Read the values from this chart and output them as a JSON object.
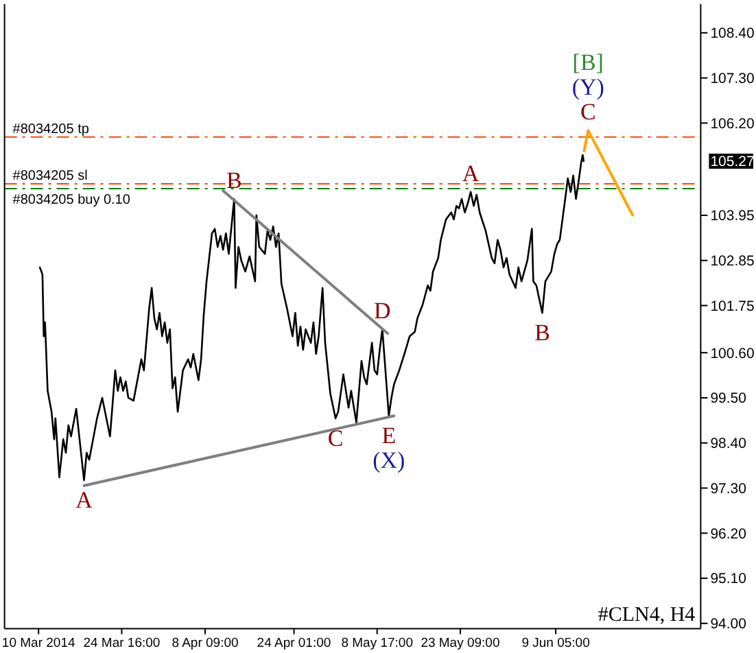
{
  "chart_data": {
    "type": "line",
    "xlim": [
      "2014-03-04T00:00",
      "2014-07-04T18:30"
    ],
    "ylim": [
      93.87,
      109.1
    ],
    "xticks": [
      {
        "value": "2014-03-10T00:00",
        "label": "10 Mar 2014"
      },
      {
        "value": "2014-03-24T16:00",
        "label": "24 Mar 16:00"
      },
      {
        "value": "2014-04-08T09:00",
        "label": "8 Apr 09:00"
      },
      {
        "value": "2014-04-24T01:00",
        "label": "24 Apr 01:00"
      },
      {
        "value": "2014-05-08T17:00",
        "label": "8 May 17:00"
      },
      {
        "value": "2014-05-23T09:00",
        "label": "23 May 09:00"
      },
      {
        "value": "2014-06-09T05:00",
        "label": "9 Jun 05:00"
      }
    ],
    "yticks": [
      {
        "value": 94,
        "label": "94.00"
      },
      {
        "value": 95.1,
        "label": "95.10"
      },
      {
        "value": 96.2,
        "label": "96.20"
      },
      {
        "value": 97.3,
        "label": "97.30"
      },
      {
        "value": 98.4,
        "label": "98.40"
      },
      {
        "value": 99.5,
        "label": "99.50"
      },
      {
        "value": 100.6,
        "label": "100.60"
      },
      101.75,
      102.85,
      103.95,
      {
        "value": 106.2,
        "label": "106.20"
      },
      {
        "value": 107.3,
        "label": "107.30"
      },
      {
        "value": 108.4,
        "label": "108.40"
      }
    ],
    "series": [
      {
        "color": "#000000",
        "x": [
          "2014-03-10T05:30",
          "2014-03-10T16:30",
          "2014-03-10T22:00",
          "2014-03-11T03:30",
          "2014-03-11T14:30",
          "2014-03-12T07:00",
          "2014-03-12T18:00",
          "2014-03-12T23:30",
          "2014-03-13T16:00",
          "2014-03-14T08:30",
          "2014-03-14T19:30",
          "2014-03-15T06:30",
          "2014-03-15T17:30",
          "2014-03-16T15:30",
          "2014-03-18T00:30",
          "2014-03-18T11:30",
          "2014-03-18T22:30",
          "2014-03-20T07:30",
          "2014-03-21T05:30",
          "2014-03-22T14:30",
          "2014-03-23T12:30",
          "2014-03-23T23:30",
          "2014-03-24T10:30",
          "2014-03-24T22:00",
          "2014-03-25T09:00",
          "2014-03-25T20:00",
          "2014-03-26T18:00",
          "2014-03-28T03:00",
          "2014-03-28T14:00",
          "2014-03-29T12:00",
          "2014-03-29T23:00",
          "2014-03-30T10:00",
          "2014-03-30T21:00",
          "2014-03-31T08:00",
          "2014-03-31T19:00",
          "2014-04-01T06:00",
          "2014-04-01T17:00",
          "2014-04-02T04:00",
          "2014-04-02T15:00",
          "2014-04-03T02:00",
          "2014-04-03T13:00",
          "2014-04-04T11:00",
          "2014-04-05T09:00",
          "2014-04-05T20:00",
          "2014-04-06T07:00",
          "2014-04-07T05:00",
          "2014-04-07T16:00",
          "2014-04-08T03:00",
          "2014-04-08T15:00",
          "2014-04-09T14:00",
          "2014-04-10T02:00",
          "2014-04-10T14:00",
          "2014-04-11T02:00",
          "2014-04-11T13:00",
          "2014-04-12T01:00",
          "2014-04-12T13:00",
          "2014-04-13T12:00",
          "2014-04-13T18:00",
          "2014-04-14T06:00",
          "2014-04-14T18:00",
          "2014-04-15T11:00",
          "2014-04-16T05:00",
          "2014-04-17T04:30",
          "2014-04-17T10:00",
          "2014-04-17T22:00",
          "2014-04-18T22:00",
          "2014-04-19T09:00",
          "2014-04-19T21:00",
          "2014-04-20T09:00",
          "2014-04-20T21:00",
          "2014-04-21T08:00",
          "2014-04-21T20:00",
          "2014-04-22T20:00",
          "2014-04-23T19:00",
          "2014-04-24T06:30",
          "2014-04-24T17:30",
          "2014-04-25T04:30",
          "2014-04-25T15:30",
          "2014-04-26T02:30",
          "2014-04-27T00:30",
          "2014-04-27T11:30",
          "2014-04-27T22:30",
          "2014-04-28T09:30",
          "2014-04-29T02:00",
          "2014-04-29T13:00",
          "2014-04-30T11:00",
          "2014-05-01T09:00",
          "2014-05-01T20:00",
          "2014-05-02T18:00",
          "2014-05-03T16:00",
          "2014-05-04T03:00",
          "2014-05-05T01:00",
          "2014-05-05T23:00",
          "2014-05-06T10:00",
          "2014-05-06T21:00",
          "2014-05-07T19:00",
          "2014-05-08T06:00",
          "2014-05-08T17:00",
          "2014-05-09T04:00",
          "2014-05-09T15:00",
          "2014-05-10T02:00",
          "2014-05-10T18:30",
          "2014-05-11T05:30",
          "2014-05-11T16:30",
          "2014-05-12T14:30",
          "2014-05-13T12:30",
          "2014-05-14T10:30",
          "2014-05-15T08:30",
          "2014-05-15T19:30",
          "2014-05-16T17:30",
          "2014-05-17T15:30",
          "2014-05-18T02:30",
          "2014-05-18T13:30",
          "2014-05-19T11:30",
          "2014-05-19T22:30",
          "2014-05-20T20:30",
          "2014-05-21T18:30",
          "2014-05-22T05:30",
          "2014-05-22T16:30",
          "2014-05-23T03:30",
          "2014-05-23T15:00",
          "2014-05-24T04:00",
          "2014-05-24T17:00",
          "2014-05-25T05:00",
          "2014-05-25T18:00",
          "2014-05-26T06:00",
          "2014-05-26T19:00",
          "2014-05-27T20:00",
          "2014-05-28T22:00",
          "2014-05-29T10:00",
          "2014-05-29T23:00",
          "2014-05-30T11:00",
          "2014-05-31T00:00",
          "2014-05-31T13:00",
          "2014-06-01T01:00",
          "2014-06-02T03:00",
          "2014-06-02T15:00",
          "2014-06-03T04:00",
          "2014-06-04T05:00",
          "2014-06-05T00:00",
          "2014-06-05T06:00",
          "2014-06-05T19:00",
          "2014-06-06T20:00",
          "2014-06-07T09:00",
          "2014-06-08T10:00",
          "2014-06-08T23:00",
          "2014-06-09T11:00",
          "2014-06-09T22:00",
          "2014-06-10T09:30",
          "2014-06-10T21:00",
          "2014-06-11T08:00",
          "2014-06-11T20:00",
          "2014-06-12T07:00",
          "2014-06-12T18:30",
          "2014-06-13T06:00",
          "2014-06-13T17:00",
          "2014-06-13T23:00",
          "2014-06-14T03:00"
        ],
        "values": [
          102.68,
          102.51,
          101.0,
          101.34,
          99.67,
          99.16,
          98.49,
          99.0,
          97.56,
          98.49,
          98.16,
          98.83,
          98.56,
          99.23,
          97.49,
          98.16,
          97.99,
          99.0,
          99.5,
          98.56,
          100.17,
          99.67,
          100.0,
          99.67,
          99.9,
          99.5,
          99.43,
          100.44,
          100.17,
          101.67,
          102.18,
          101.44,
          101.17,
          101.57,
          101.0,
          101.34,
          100.84,
          101.17,
          99.73,
          100.0,
          99.16,
          100.17,
          100.44,
          100.24,
          100.57,
          99.93,
          100.44,
          101.51,
          102.34,
          103.51,
          103.62,
          103.18,
          103.45,
          103.11,
          103.51,
          103.01,
          104.35,
          102.18,
          103.18,
          102.85,
          102.58,
          102.95,
          102.34,
          103.95,
          103.18,
          103.01,
          103.58,
          103.35,
          103.68,
          103.18,
          103.51,
          102.28,
          101.67,
          101.0,
          101.57,
          100.77,
          101.24,
          100.67,
          101.17,
          100.84,
          101.34,
          100.57,
          101.0,
          102.18,
          100.84,
          99.6,
          99.0,
          99.16,
          100.07,
          99.26,
          99.67,
          98.9,
          100.4,
          100.0,
          99.83,
          100.84,
          100.17,
          100.07,
          100.67,
          101.17,
          100.34,
          99.06,
          99.5,
          99.83,
          100.17,
          100.57,
          101.0,
          101.11,
          101.44,
          101.77,
          102.24,
          102.11,
          102.58,
          102.91,
          103.35,
          103.85,
          104.02,
          103.85,
          104.18,
          104.12,
          104.35,
          104.02,
          104.25,
          104.52,
          104.18,
          104.45,
          104.02,
          103.58,
          102.91,
          102.78,
          103.35,
          103.11,
          102.68,
          102.91,
          102.51,
          102.18,
          102.68,
          102.34,
          102.85,
          103.62,
          102.34,
          102.24,
          101.57,
          102.34,
          102.58,
          103.01,
          103.25,
          103.35,
          103.85,
          104.35,
          104.85,
          104.52,
          104.92,
          104.35,
          104.79,
          105.25,
          105.42,
          105.27
        ]
      },
      {
        "type": "line",
        "color": "#7f7f7f",
        "x": [
          "2014-04-11T13:00",
          "2014-05-10T13:00"
        ],
        "values": [
          104.55,
          101.07
        ]
      },
      {
        "type": "line",
        "color": "#7f7f7f",
        "x": [
          "2014-03-18T00:30",
          "2014-05-11T16:30"
        ],
        "values": [
          97.36,
          99.06
        ]
      },
      {
        "type": "line",
        "color": "#ffa500",
        "x": [
          "2014-06-14T05:00",
          "2014-06-14T22:00",
          "2014-06-22T18:00"
        ],
        "values": [
          105.52,
          106.02,
          103.96
        ]
      }
    ],
    "ref_lines": [
      {
        "axis": "y",
        "value": 105.86,
        "label": "#8034205 tp",
        "color": "#ff4500",
        "line_style": "dashed"
      },
      {
        "axis": "y",
        "value": 104.72,
        "label": "#8034205 sl",
        "color": "#ff4500",
        "line_style": "dashed"
      },
      {
        "axis": "y",
        "value": 104.6,
        "label": "#8034205 buy 0.10",
        "color": "#008000",
        "line_style": "dashed"
      }
    ],
    "annotations": [
      {
        "text": "A",
        "x": "2014-03-18T00:30",
        "y": 97.49
      },
      {
        "text": "B",
        "x": "2014-04-13T12:00",
        "y": 104.35
      },
      {
        "text": "C",
        "x": "2014-05-01T09:00",
        "y": 99.0
      },
      {
        "text": "D",
        "x": "2014-05-09T15:00",
        "y": 101.17
      },
      {
        "text": "E",
        "x": "2014-05-10T18:30",
        "y": 99.06
      },
      {
        "text": "(X)",
        "x": "2014-05-10T18:30",
        "y": 99.06
      },
      {
        "text": "A",
        "x": "2014-05-25T05:00",
        "y": 104.52
      },
      {
        "text": "B",
        "x": "2014-06-06T20:00",
        "y": 101.57
      },
      {
        "text": "C",
        "x": "2014-06-14T22:00",
        "y": 106.02
      },
      {
        "text": "(Y)",
        "x": "2014-06-14T22:00",
        "y": 106.02
      },
      {
        "text": "[B]",
        "x": "2014-06-14T22:00",
        "y": 106.02
      },
      "#CLN4, H4",
      "105.27"
    ]
  }
}
